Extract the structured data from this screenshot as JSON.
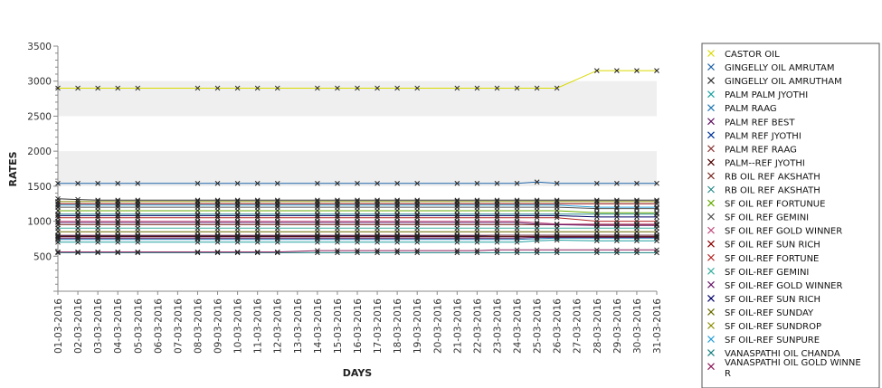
{
  "chart_data": {
    "type": "line",
    "title": "",
    "xlabel": "DAYS",
    "ylabel": "RATES",
    "ylim": [
      0,
      3500
    ],
    "yticks": [
      500,
      1000,
      1500,
      2000,
      2500,
      3000,
      3500
    ],
    "grid": "alternating horizontal bands",
    "legend_position": "right",
    "marker": "x",
    "categories": [
      "01-03-2016",
      "02-03-2016",
      "03-03-2016",
      "04-03-2016",
      "05-03-2016",
      "06-03-2016",
      "07-03-2016",
      "08-03-2016",
      "09-03-2016",
      "10-03-2016",
      "11-03-2016",
      "12-03-2016",
      "13-03-2016",
      "14-03-2016",
      "15-03-2016",
      "16-03-2016",
      "17-03-2016",
      "18-03-2016",
      "19-03-2016",
      "20-03-2016",
      "21-03-2016",
      "22-03-2016",
      "23-03-2016",
      "24-03-2016",
      "25-03-2016",
      "26-03-2016",
      "27-03-2016",
      "28-03-2016",
      "29-03-2016",
      "30-03-2016",
      "31-03-2016"
    ],
    "series": [
      {
        "name": "CASTOR OIL",
        "color": "#d9d900",
        "values": [
          2900,
          2900,
          2900,
          2900,
          2900,
          null,
          null,
          2900,
          2900,
          2900,
          2900,
          2900,
          null,
          2900,
          2900,
          2900,
          2900,
          2900,
          2900,
          null,
          2900,
          2900,
          2900,
          2900,
          2900,
          2900,
          null,
          3150,
          3150,
          3150,
          3150
        ]
      },
      {
        "name": "GINGELLY OIL AMRUTAM",
        "color": "#2266aa",
        "values": [
          1540,
          1540,
          1540,
          1540,
          1540,
          null,
          null,
          1540,
          1540,
          1540,
          1540,
          1540,
          null,
          1540,
          1540,
          1540,
          1540,
          1540,
          1540,
          null,
          1540,
          1540,
          1540,
          1540,
          1560,
          1540,
          null,
          1540,
          1540,
          1540,
          1540
        ]
      },
      {
        "name": "GINGELLY OIL AMRUTHAM",
        "color": "#333333",
        "values": [
          1320,
          1310,
          1300,
          1300,
          1300,
          null,
          null,
          1300,
          1300,
          1300,
          1300,
          1300,
          null,
          1300,
          1300,
          1300,
          1300,
          1300,
          1300,
          null,
          1300,
          1300,
          1300,
          1300,
          1300,
          1300,
          null,
          1300,
          1300,
          1300,
          1300
        ]
      },
      {
        "name": "PALM PALM JYOTHI",
        "color": "#20a0a0",
        "values": [
          700,
          700,
          700,
          700,
          700,
          null,
          null,
          700,
          700,
          700,
          700,
          700,
          null,
          700,
          700,
          700,
          700,
          700,
          700,
          null,
          700,
          700,
          700,
          700,
          720,
          730,
          null,
          720,
          720,
          720,
          720
        ]
      },
      {
        "name": "PALM RAAG",
        "color": "#1f77b4",
        "values": [
          740,
          740,
          740,
          740,
          740,
          null,
          null,
          740,
          740,
          740,
          740,
          740,
          null,
          740,
          740,
          740,
          740,
          740,
          740,
          null,
          740,
          740,
          740,
          740,
          750,
          760,
          null,
          760,
          760,
          760,
          760
        ]
      },
      {
        "name": "PALM REF BEST",
        "color": "#5a0a5a",
        "values": [
          760,
          760,
          760,
          760,
          760,
          null,
          null,
          760,
          760,
          760,
          760,
          760,
          null,
          760,
          760,
          760,
          760,
          760,
          760,
          null,
          760,
          760,
          760,
          760,
          770,
          770,
          null,
          770,
          770,
          770,
          770
        ]
      },
      {
        "name": "PALM REF JYOTHI",
        "color": "#003399",
        "values": [
          790,
          790,
          790,
          790,
          790,
          null,
          null,
          790,
          790,
          790,
          790,
          790,
          null,
          790,
          790,
          790,
          790,
          790,
          790,
          null,
          790,
          790,
          800,
          800,
          800,
          800,
          null,
          800,
          800,
          800,
          800
        ]
      },
      {
        "name": "PALM REF RAAG",
        "color": "#8b3a3a",
        "values": [
          800,
          800,
          800,
          800,
          800,
          null,
          null,
          800,
          800,
          800,
          800,
          800,
          null,
          800,
          800,
          800,
          800,
          800,
          800,
          null,
          800,
          800,
          800,
          800,
          800,
          800,
          null,
          800,
          800,
          800,
          800
        ]
      },
      {
        "name": "PALM--REF JYOTHI",
        "color": "#4b0000",
        "values": [
          780,
          780,
          780,
          780,
          780,
          null,
          null,
          780,
          780,
          780,
          780,
          780,
          null,
          780,
          780,
          780,
          780,
          780,
          780,
          null,
          780,
          780,
          780,
          780,
          780,
          780,
          null,
          780,
          780,
          780,
          780
        ]
      },
      {
        "name": "RB OIL REF  AKSHATH",
        "color": "#7b2d26",
        "values": [
          950,
          950,
          950,
          950,
          950,
          null,
          null,
          950,
          950,
          950,
          950,
          950,
          null,
          950,
          950,
          950,
          950,
          950,
          950,
          null,
          950,
          950,
          950,
          950,
          950,
          950,
          null,
          950,
          950,
          950,
          950
        ]
      },
      {
        "name": "RB OIL REF AKSHATH",
        "color": "#2a8a8a",
        "values": [
          1100,
          1100,
          1100,
          1100,
          1100,
          null,
          null,
          1100,
          1100,
          1100,
          1100,
          1100,
          null,
          1100,
          1100,
          1100,
          1100,
          1100,
          1100,
          null,
          1100,
          1100,
          1100,
          1100,
          1100,
          1100,
          null,
          1100,
          1100,
          1100,
          1100
        ]
      },
      {
        "name": "SF OIL REF FORTUNUE",
        "color": "#66aa00",
        "values": [
          1150,
          1150,
          1150,
          1150,
          1150,
          null,
          null,
          1150,
          1150,
          1150,
          1150,
          1150,
          null,
          1150,
          1150,
          1150,
          1150,
          1150,
          1150,
          null,
          1150,
          1150,
          1150,
          1150,
          1150,
          1150,
          null,
          1120,
          1120,
          1120,
          1120
        ]
      },
      {
        "name": "SF OIL REF GEMINI",
        "color": "#555555",
        "values": [
          1200,
          1200,
          1200,
          1200,
          1200,
          null,
          null,
          1200,
          1200,
          1200,
          1200,
          1200,
          null,
          1200,
          1200,
          1200,
          1200,
          1200,
          1200,
          null,
          1200,
          1200,
          1200,
          1200,
          1200,
          1200,
          null,
          1180,
          1180,
          1180,
          1180
        ]
      },
      {
        "name": "SF OIL REF GOLD WINNER",
        "color": "#c05080",
        "values": [
          1000,
          1000,
          1000,
          1000,
          1000,
          null,
          null,
          1000,
          1000,
          1000,
          1000,
          1000,
          null,
          1000,
          1000,
          1000,
          1000,
          1000,
          1000,
          null,
          1000,
          1000,
          1000,
          1000,
          980,
          960,
          null,
          960,
          960,
          960,
          960
        ]
      },
      {
        "name": "SF OIL REF SUN RICH",
        "color": "#8b0000",
        "values": [
          1250,
          1250,
          1250,
          1250,
          1250,
          null,
          null,
          1250,
          1250,
          1250,
          1250,
          1250,
          null,
          1250,
          1250,
          1250,
          1250,
          1250,
          1250,
          null,
          1250,
          1250,
          1250,
          1250,
          1250,
          1250,
          null,
          1250,
          1250,
          1250,
          1250
        ]
      },
      {
        "name": "SF OIL-REF FORTUNE",
        "color": "#b22222",
        "values": [
          1050,
          1050,
          1050,
          1050,
          1050,
          null,
          null,
          1050,
          1050,
          1050,
          1050,
          1050,
          null,
          1050,
          1050,
          1050,
          1050,
          1050,
          1050,
          null,
          1050,
          1050,
          1050,
          1050,
          1050,
          1050,
          null,
          1000,
          1000,
          1000,
          1000
        ]
      },
      {
        "name": "SF OIL-REF GEMINI",
        "color": "#3cb0a0",
        "values": [
          900,
          900,
          900,
          900,
          900,
          null,
          null,
          900,
          900,
          900,
          900,
          900,
          null,
          900,
          900,
          900,
          900,
          900,
          900,
          null,
          900,
          900,
          900,
          900,
          900,
          900,
          null,
          900,
          900,
          900,
          900
        ]
      },
      {
        "name": "SF OIL-REF GOLD WINNER",
        "color": "#6a1b6a",
        "values": [
          980,
          980,
          980,
          980,
          980,
          null,
          null,
          980,
          980,
          980,
          980,
          980,
          null,
          980,
          980,
          980,
          980,
          980,
          980,
          null,
          980,
          980,
          980,
          980,
          960,
          950,
          null,
          940,
          940,
          940,
          940
        ]
      },
      {
        "name": "SF OIL-REF SUN RICH",
        "color": "#000066",
        "values": [
          1080,
          1080,
          1080,
          1080,
          1080,
          null,
          null,
          1080,
          1080,
          1080,
          1080,
          1080,
          null,
          1080,
          1080,
          1080,
          1080,
          1080,
          1080,
          null,
          1080,
          1080,
          1080,
          1080,
          1080,
          1080,
          null,
          1060,
          1060,
          1060,
          1060
        ]
      },
      {
        "name": "SF OIL-REF SUNDAY",
        "color": "#6b6b00",
        "values": [
          850,
          850,
          850,
          850,
          850,
          null,
          null,
          850,
          850,
          850,
          850,
          850,
          null,
          850,
          850,
          850,
          850,
          850,
          850,
          null,
          850,
          850,
          850,
          850,
          850,
          850,
          null,
          850,
          850,
          850,
          850
        ]
      },
      {
        "name": "SF OIL-REF SUNDROP",
        "color": "#8a8a00",
        "values": [
          1280,
          1280,
          1280,
          1280,
          1280,
          null,
          null,
          1280,
          1280,
          1280,
          1280,
          1280,
          null,
          1280,
          1280,
          1280,
          1280,
          1280,
          1280,
          null,
          1280,
          1280,
          1280,
          1280,
          1280,
          1280,
          null,
          1280,
          1280,
          1280,
          1280
        ]
      },
      {
        "name": "SF OIL-REF SUNPURE",
        "color": "#2a9fd6",
        "values": [
          1230,
          1230,
          1230,
          1230,
          1230,
          null,
          null,
          1230,
          1230,
          1230,
          1230,
          1230,
          null,
          1230,
          1230,
          1230,
          1230,
          1230,
          1230,
          null,
          1230,
          1230,
          1230,
          1230,
          1230,
          1230,
          null,
          1200,
          1200,
          1200,
          1200
        ]
      },
      {
        "name": "VANASPATHI OIL CHANDA",
        "color": "#1a8080",
        "values": [
          550,
          550,
          550,
          550,
          550,
          null,
          null,
          550,
          550,
          550,
          550,
          550,
          null,
          550,
          550,
          550,
          550,
          550,
          550,
          null,
          550,
          550,
          550,
          550,
          550,
          550,
          null,
          550,
          550,
          550,
          550
        ]
      },
      {
        "name": "VANASPATHI OIL GOLD WINNE R",
        "color": "#8b1a5a",
        "values": [
          560,
          560,
          560,
          560,
          560,
          null,
          null,
          560,
          560,
          560,
          560,
          560,
          null,
          580,
          580,
          580,
          580,
          580,
          580,
          null,
          580,
          580,
          590,
          590,
          590,
          590,
          null,
          590,
          590,
          590,
          590
        ]
      }
    ]
  }
}
